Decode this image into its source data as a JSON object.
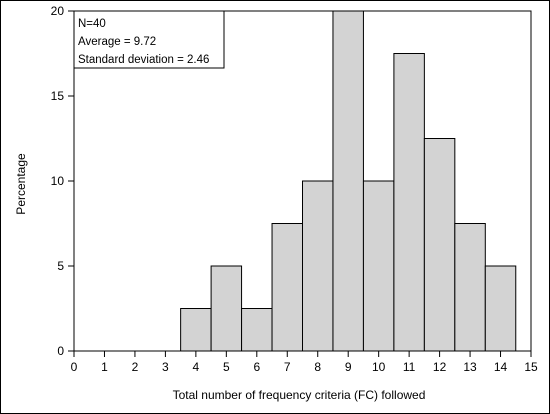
{
  "chart_data": {
    "type": "bar",
    "title": "",
    "xlabel": "Total number of frequency criteria (FC) followed",
    "ylabel": "Percentage",
    "x_ticks": [
      0,
      1,
      2,
      3,
      4,
      5,
      6,
      7,
      8,
      9,
      10,
      11,
      12,
      13,
      14,
      15
    ],
    "y_ticks": [
      0,
      5,
      10,
      15,
      20
    ],
    "xlim": [
      0,
      15
    ],
    "ylim": [
      0,
      20
    ],
    "bin_width": 1,
    "bins": [
      {
        "x": 4,
        "value": 2.5
      },
      {
        "x": 5,
        "value": 5
      },
      {
        "x": 6,
        "value": 2.5
      },
      {
        "x": 7,
        "value": 7.5
      },
      {
        "x": 8,
        "value": 10
      },
      {
        "x": 9,
        "value": 20
      },
      {
        "x": 10,
        "value": 10
      },
      {
        "x": 11,
        "value": 17.5
      },
      {
        "x": 12,
        "value": 12.5
      },
      {
        "x": 13,
        "value": 7.5
      },
      {
        "x": 14,
        "value": 5
      }
    ],
    "bar_color": "#d3d3d3",
    "grid": false,
    "annotation": {
      "lines": [
        "N=40",
        "Average = 9.72",
        "Standard deviation = 2.46"
      ],
      "placement": "top-left"
    }
  }
}
